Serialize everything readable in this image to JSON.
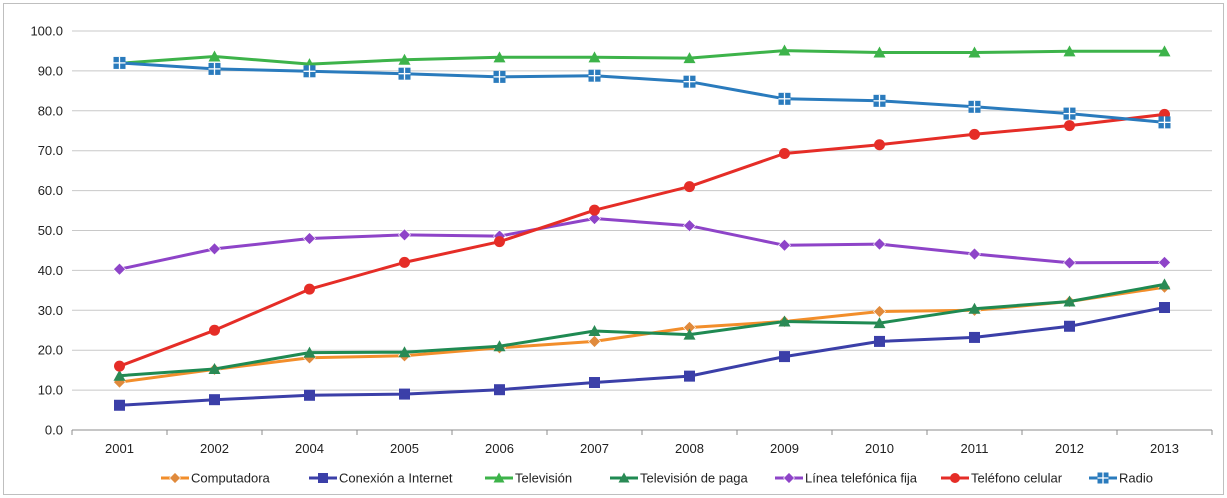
{
  "chart_data": {
    "type": "line",
    "title": "",
    "xlabel": "",
    "ylabel": "",
    "ylim": [
      0,
      100
    ],
    "yticks": [
      "0.0",
      "10.0",
      "20.0",
      "30.0",
      "40.0",
      "50.0",
      "60.0",
      "70.0",
      "80.0",
      "90.0",
      "100.0"
    ],
    "categories": [
      "2001",
      "2002",
      "2004",
      "2005",
      "2006",
      "2007",
      "2008",
      "2009",
      "2010",
      "2011",
      "2012",
      "2013"
    ],
    "grid": "horizontal",
    "legend_position": "bottom",
    "series": [
      {
        "name": "Computadora",
        "color": "#f28e2b",
        "marker": "diamond",
        "marker_color": "#e08a3c",
        "values": [
          12.0,
          15.2,
          18.1,
          18.6,
          20.6,
          22.2,
          25.7,
          27.2,
          29.7,
          30.0,
          32.2,
          35.8
        ]
      },
      {
        "name": "Conexión a Internet",
        "color": "#3b3fa8",
        "marker": "square",
        "marker_color": "#3b3fa8",
        "values": [
          6.2,
          7.6,
          8.7,
          9.0,
          10.1,
          11.9,
          13.5,
          18.4,
          22.2,
          23.2,
          26.0,
          30.7
        ]
      },
      {
        "name": "Televisión",
        "color": "#3db34a",
        "marker": "triangle",
        "marker_color": "#3db34a",
        "values": [
          91.9,
          93.6,
          91.7,
          92.8,
          93.4,
          93.4,
          93.2,
          95.1,
          94.6,
          94.6,
          94.9,
          94.9
        ]
      },
      {
        "name": "Televisión de paga",
        "color": "#1f8a52",
        "marker": "triangle",
        "marker_color": "#2a8a55",
        "values": [
          13.6,
          15.3,
          19.4,
          19.5,
          21.0,
          24.8,
          23.9,
          27.2,
          26.8,
          30.4,
          32.2,
          36.5
        ]
      },
      {
        "name": "Línea telefónica fija",
        "color": "#8e44c8",
        "marker": "diamond",
        "marker_color": "#8e44c8",
        "values": [
          40.3,
          45.4,
          48.0,
          48.9,
          48.6,
          53.0,
          51.2,
          46.3,
          46.6,
          44.1,
          41.9,
          42.0
        ]
      },
      {
        "name": "Teléfono celular",
        "color": "#e52d27",
        "marker": "circle",
        "marker_color": "#e52d27",
        "values": [
          16.0,
          25.0,
          35.3,
          42.0,
          47.2,
          55.1,
          61.0,
          69.3,
          71.5,
          74.1,
          76.3,
          79.1
        ]
      },
      {
        "name": "Radio",
        "color": "#2a7bbd",
        "marker": "square-cross",
        "marker_color": "#2a7bbd",
        "values": [
          92.0,
          90.5,
          89.9,
          89.3,
          88.5,
          88.8,
          87.3,
          83.0,
          82.5,
          81.0,
          79.3,
          77.1
        ]
      }
    ]
  }
}
